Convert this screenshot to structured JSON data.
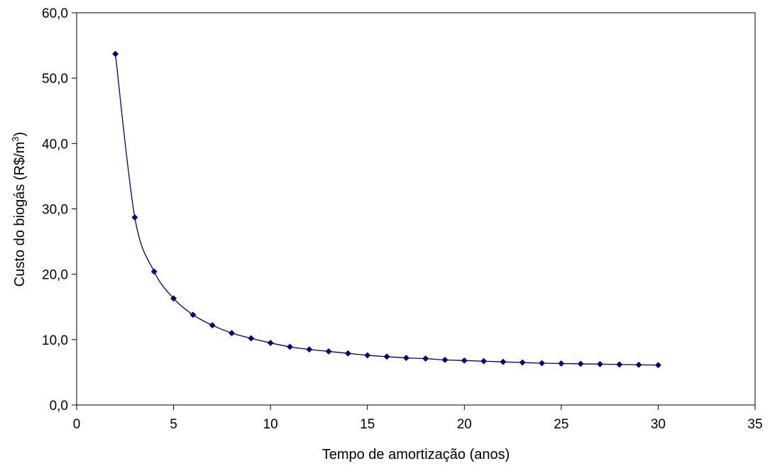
{
  "chart_data": {
    "type": "line",
    "xlabel": "Tempo de amortização (anos)",
    "ylabel": "Custo do biogás (R$/m",
    "ylabel_superscript": "3",
    "ylabel_suffix": ")",
    "xlim": [
      0,
      35
    ],
    "ylim": [
      0,
      60
    ],
    "x_ticks": [
      0,
      5,
      10,
      15,
      20,
      25,
      30,
      35
    ],
    "x_tick_labels": [
      "0",
      "5",
      "10",
      "15",
      "20",
      "25",
      "30",
      "35"
    ],
    "y_ticks": [
      0,
      10,
      20,
      30,
      40,
      50,
      60
    ],
    "y_tick_labels": [
      "0,0",
      "10,0",
      "20,0",
      "30,0",
      "40,0",
      "50,0",
      "60,0"
    ],
    "grid": false,
    "series": [
      {
        "marker": "diamond",
        "color": "#000080",
        "x": [
          2,
          3,
          4,
          5,
          6,
          7,
          8,
          9,
          10,
          11,
          12,
          13,
          14,
          15,
          16,
          17,
          18,
          19,
          20,
          21,
          22,
          23,
          24,
          25,
          26,
          27,
          28,
          29,
          30
        ],
        "y": [
          53.7,
          28.7,
          20.4,
          16.3,
          13.8,
          12.2,
          11.0,
          10.2,
          9.5,
          8.9,
          8.5,
          8.2,
          7.9,
          7.6,
          7.4,
          7.2,
          7.1,
          6.9,
          6.8,
          6.7,
          6.6,
          6.5,
          6.4,
          6.35,
          6.3,
          6.25,
          6.2,
          6.15,
          6.1
        ]
      }
    ]
  }
}
